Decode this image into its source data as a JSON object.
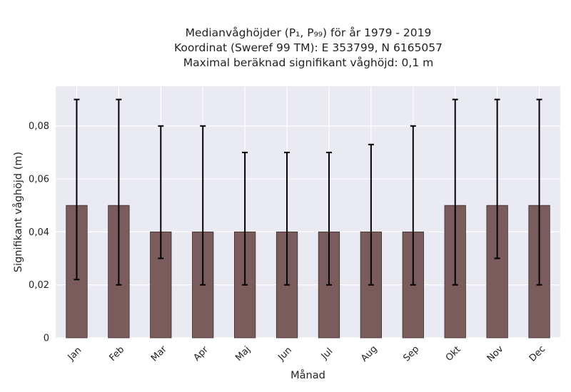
{
  "chart_data": {
    "type": "bar",
    "title_lines": [
      "Medianvåghöjder (P₁, P₉₉) för år 1979 - 2019",
      "Koordinat (Sweref 99 TM): E 353799, N 6165057",
      "Maximal beräknad signifikant våghöjd: 0,1 m"
    ],
    "xlabel": "Månad",
    "ylabel": "Signifikant våghöjd (m)",
    "categories": [
      "Jan",
      "Feb",
      "Mar",
      "Apr",
      "Maj",
      "Jun",
      "Jul",
      "Aug",
      "Sep",
      "Okt",
      "Nov",
      "Dec"
    ],
    "series": [
      {
        "values": [
          0.05,
          0.05,
          0.04,
          0.04,
          0.04,
          0.04,
          0.04,
          0.04,
          0.04,
          0.05,
          0.05,
          0.05
        ],
        "p1": [
          0.022,
          0.02,
          0.03,
          0.02,
          0.02,
          0.02,
          0.02,
          0.02,
          0.02,
          0.02,
          0.03,
          0.02
        ],
        "p99": [
          0.09,
          0.09,
          0.08,
          0.08,
          0.07,
          0.07,
          0.07,
          0.073,
          0.08,
          0.09,
          0.09,
          0.09
        ]
      }
    ],
    "ylim": [
      0,
      0.095
    ],
    "yticks": [
      0,
      0.02,
      0.04,
      0.06,
      0.08
    ],
    "ytick_labels": [
      "0",
      "0,02",
      "0,04",
      "0,06",
      "0,08"
    ],
    "grid": true,
    "colors": {
      "bar": "#7b5c5c",
      "bar_edge": "#3c2c2c",
      "errorbar": "#000000",
      "plot_background": "#eaeaf2",
      "grid": "#ffffff"
    }
  }
}
